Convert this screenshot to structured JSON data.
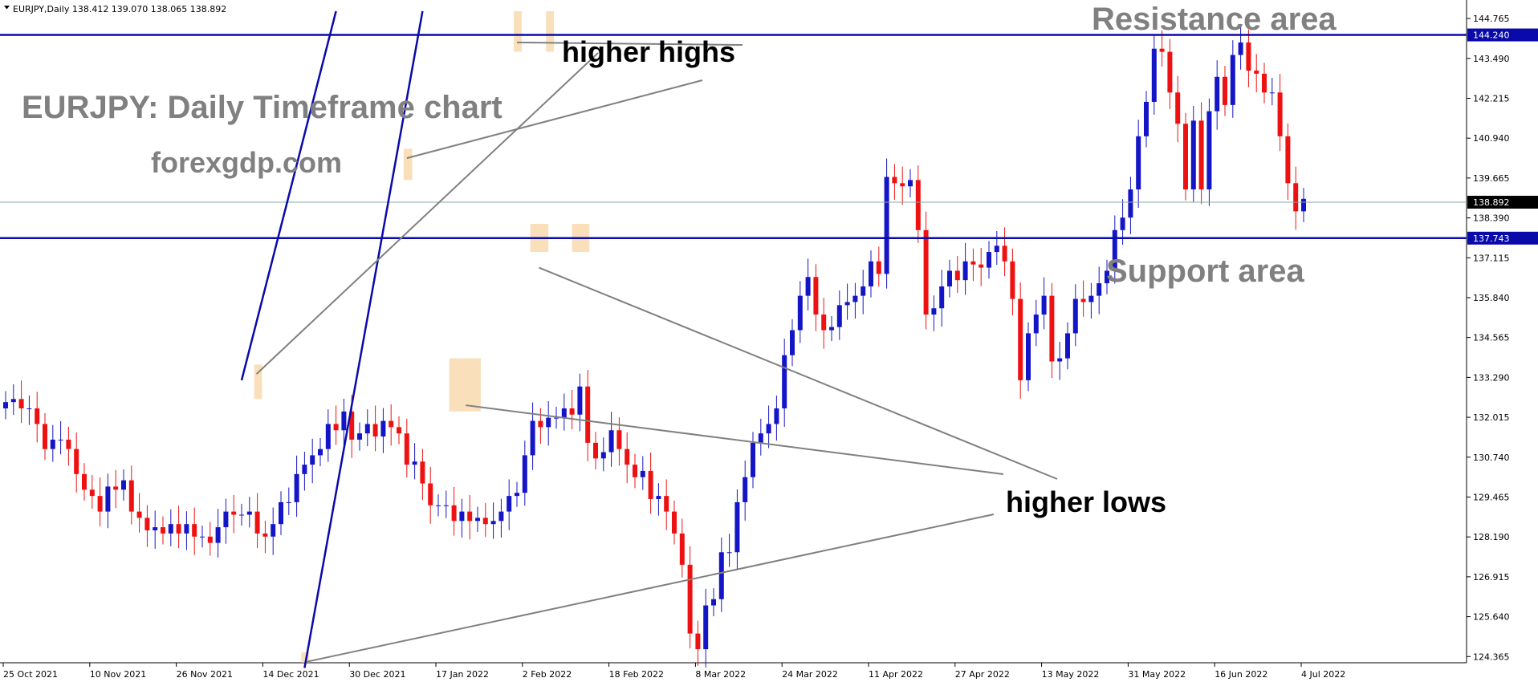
{
  "header": {
    "symbol_line": "EURJPY,Daily  138.412 139.070 138.065 138.892"
  },
  "chart_data": {
    "type": "candlestick",
    "title": "EURJPY: Daily Timeframe chart",
    "subtitle": "forexgdp.com",
    "y_ticks": [
      "144.765",
      "143.490",
      "142.215",
      "140.940",
      "139.665",
      "138.390",
      "137.115",
      "135.840",
      "134.565",
      "133.290",
      "132.015",
      "130.740",
      "129.465",
      "128.190",
      "126.915",
      "125.640",
      "124.365"
    ],
    "x_ticks": [
      "25 Oct 2021",
      "10 Nov 2021",
      "26 Nov 2021",
      "14 Dec 2021",
      "30 Dec 2021",
      "17 Jan 2022",
      "2 Feb 2022",
      "18 Feb 2022",
      "8 Mar 2022",
      "24 Mar 2022",
      "11 Apr 2022",
      "27 Apr 2022",
      "13 May 2022",
      "31 May 2022",
      "16 Jun 2022",
      "4 Jul 2022"
    ],
    "ylim": [
      124.0,
      145.0
    ],
    "resistance_level": {
      "value": 144.24,
      "label": "144.240"
    },
    "support_level": {
      "value": 137.743,
      "label": "137.743"
    },
    "current_price": {
      "value": 138.892,
      "label": "138.892"
    },
    "annotations": {
      "resistance": "Resistance area",
      "support": "Support area",
      "higher_highs": "higher highs",
      "higher_lows": "higher lows"
    },
    "trend_lines": [
      {
        "name": "upper-channel",
        "start": [
          30,
          133.2
        ],
        "end": [
          42,
          145.0
        ]
      },
      {
        "name": "lower-channel",
        "start": [
          38,
          124.0
        ],
        "end": [
          53,
          145.0
        ]
      }
    ],
    "highlights": [
      {
        "name": "highlight-high-feb",
        "x_start": 31.6,
        "x_end": 32.6,
        "y_low": 132.6,
        "y_high": 133.7
      },
      {
        "name": "highlight-high-apr",
        "x_start": 50.6,
        "x_end": 51.7,
        "y_low": 139.6,
        "y_high": 140.6
      },
      {
        "name": "highlight-high-jun1",
        "x_start": 64.6,
        "x_end": 65.6,
        "y_low": 143.7,
        "y_high": 145.0
      },
      {
        "name": "highlight-high-jun2",
        "x_start": 68.7,
        "x_end": 69.7,
        "y_low": 143.7,
        "y_high": 145.0
      },
      {
        "name": "highlight-low-mar",
        "x_start": 37.6,
        "x_end": 38.6,
        "y_low": 124.0,
        "y_high": 124.5
      },
      {
        "name": "highlight-low-may",
        "x_start": 56.4,
        "x_end": 60.4,
        "y_low": 132.2,
        "y_high": 133.9
      },
      {
        "name": "highlight-low-jun",
        "x_start": 66.7,
        "x_end": 69.0,
        "y_low": 137.3,
        "y_high": 138.2
      },
      {
        "name": "highlight-low-jul",
        "x_start": 72.0,
        "x_end": 74.2,
        "y_low": 137.3,
        "y_high": 138.2
      }
    ],
    "close": [
      132.5,
      132.6,
      132.3,
      132.3,
      131.8,
      131.0,
      131.3,
      131.3,
      131.0,
      130.2,
      129.7,
      129.5,
      129.0,
      129.8,
      129.7,
      130.0,
      129.0,
      128.8,
      128.4,
      128.5,
      128.3,
      128.6,
      128.3,
      128.6,
      128.2,
      128.2,
      128.0,
      128.5,
      129.0,
      128.9,
      128.9,
      129.0,
      128.3,
      128.2,
      128.6,
      129.3,
      129.3,
      130.2,
      130.5,
      130.8,
      131.0,
      131.8,
      131.6,
      132.2,
      131.3,
      131.5,
      131.8,
      131.4,
      131.9,
      131.7,
      131.5,
      130.5,
      130.6,
      129.9,
      129.2,
      129.2,
      129.2,
      128.7,
      129.0,
      128.7,
      128.8,
      128.6,
      128.7,
      129.0,
      129.5,
      129.6,
      130.8,
      131.9,
      131.7,
      132.0,
      132.0,
      132.3,
      132.1,
      133.0,
      131.2,
      130.7,
      130.9,
      131.6,
      131.0,
      130.5,
      130.1,
      130.3,
      129.4,
      129.5,
      129.0,
      128.3,
      127.3,
      125.1,
      124.6,
      126.0,
      126.2,
      127.7,
      127.7,
      129.3,
      130.1,
      131.2,
      131.5,
      131.8,
      132.3,
      134.0,
      134.8,
      135.9,
      136.5,
      135.3,
      134.8,
      134.9,
      135.6,
      135.7,
      135.9,
      136.2,
      137.0,
      136.6,
      139.7,
      139.5,
      139.4,
      139.6,
      138.0,
      135.3,
      135.5,
      136.2,
      136.7,
      136.4,
      137.0,
      136.9,
      136.8,
      137.3,
      137.5,
      137.0,
      135.8,
      133.2,
      134.7,
      135.3,
      135.9,
      133.8,
      133.9,
      134.7,
      135.8,
      135.7,
      135.9,
      136.3,
      136.7,
      138.0,
      138.4,
      139.3,
      141.0,
      142.1,
      143.8,
      143.7,
      142.4,
      141.4,
      139.3,
      141.5,
      139.3,
      141.8,
      142.9,
      142.0,
      143.6,
      144.0,
      143.1,
      143.0,
      142.4,
      142.4,
      141.0,
      139.5,
      138.6,
      139.0
    ]
  }
}
